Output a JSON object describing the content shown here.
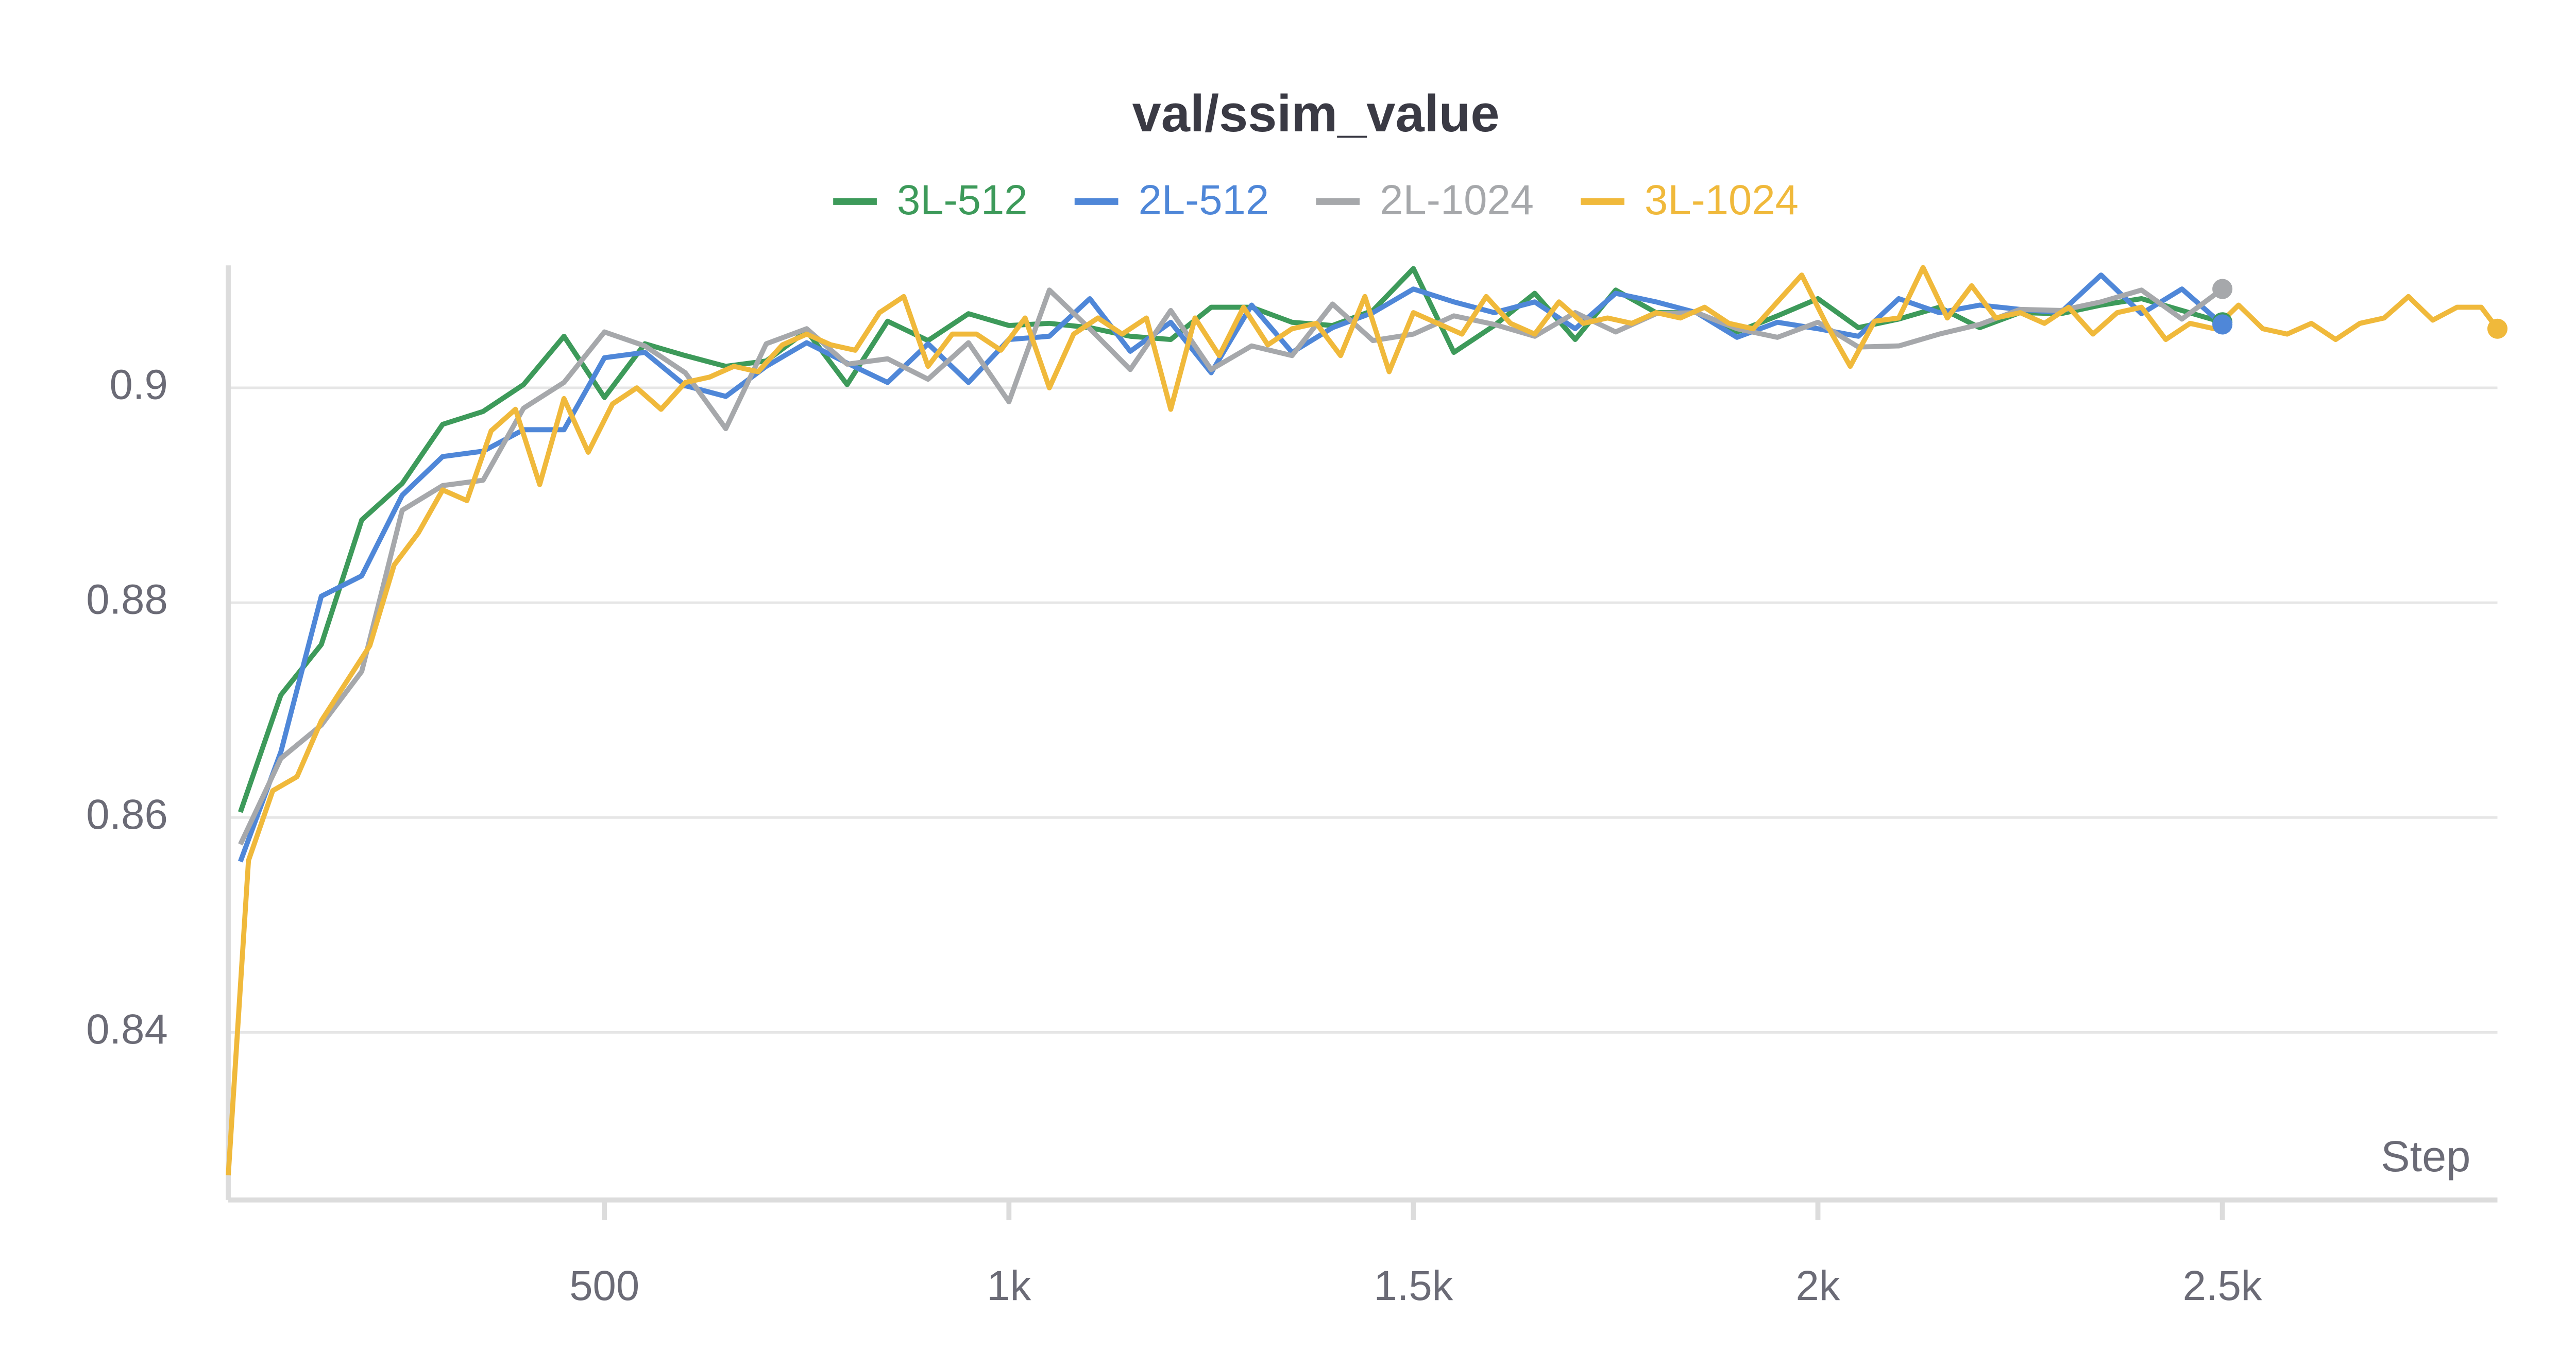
{
  "chart_data": {
    "type": "line",
    "title": "val/ssim_value",
    "x_label": "Step",
    "xlim": [
      35,
      2840
    ],
    "ylim": [
      0.8244,
      0.9114
    ],
    "xticks": [
      500,
      {
        "value": 1000,
        "label": "1k"
      },
      {
        "value": 1500,
        "label": "1.5k"
      },
      {
        "value": 2000,
        "label": "2k"
      },
      {
        "value": 2500,
        "label": "2.5k"
      }
    ],
    "yticks": [
      0.84,
      0.86,
      0.88,
      0.9
    ],
    "grid": true,
    "legend": "top",
    "series": [
      {
        "name": "3L-512",
        "color": "#3d9a5a",
        "x": [
          50,
          100,
          150,
          200,
          250,
          300,
          350,
          400,
          450,
          500,
          550,
          600,
          650,
          700,
          750,
          800,
          850,
          900,
          950,
          1000,
          1050,
          1100,
          1150,
          1200,
          1250,
          1300,
          1350,
          1400,
          1450,
          1500,
          1550,
          1600,
          1650,
          1700,
          1750,
          1800,
          1850,
          1900,
          1950,
          2000,
          2050,
          2100,
          2150,
          2200,
          2250,
          2300,
          2350,
          2400,
          2450,
          2500
        ],
        "values": [
          0.8605,
          0.8714,
          0.8761,
          0.8877,
          0.8911,
          0.8966,
          0.8978,
          0.9003,
          0.9048,
          0.8991,
          0.9041,
          0.903,
          0.902,
          0.9025,
          0.9053,
          0.9003,
          0.9062,
          0.9044,
          0.9069,
          0.9058,
          0.906,
          0.9056,
          0.9048,
          0.9045,
          0.9075,
          0.9075,
          0.9061,
          0.9058,
          0.9072,
          0.9111,
          0.9033,
          0.9058,
          0.9088,
          0.9045,
          0.9091,
          0.907,
          0.907,
          0.9052,
          0.9067,
          0.9083,
          0.9056,
          0.9064,
          0.9075,
          0.9056,
          0.907,
          0.9069,
          0.9077,
          0.9083,
          0.9072,
          0.9061
        ]
      },
      {
        "name": "2L-512",
        "color": "#4f87d8",
        "x": [
          50,
          100,
          150,
          200,
          250,
          300,
          350,
          400,
          450,
          500,
          550,
          600,
          650,
          700,
          750,
          800,
          850,
          900,
          950,
          1000,
          1050,
          1100,
          1150,
          1200,
          1250,
          1300,
          1350,
          1400,
          1450,
          1500,
          1550,
          1600,
          1650,
          1700,
          1750,
          1800,
          1850,
          1900,
          1950,
          2000,
          2050,
          2100,
          2150,
          2200,
          2250,
          2300,
          2350,
          2400,
          2450,
          2500
        ],
        "values": [
          0.8559,
          0.8661,
          0.8806,
          0.8825,
          0.89,
          0.8936,
          0.8941,
          0.8961,
          0.8961,
          0.9028,
          0.9033,
          0.9002,
          0.8992,
          0.902,
          0.9042,
          0.9023,
          0.9005,
          0.9041,
          0.9005,
          0.9045,
          0.9048,
          0.9083,
          0.9034,
          0.9061,
          0.9014,
          0.9077,
          0.9033,
          0.9056,
          0.907,
          0.9092,
          0.908,
          0.907,
          0.908,
          0.9055,
          0.9088,
          0.908,
          0.907,
          0.9047,
          0.9061,
          0.9055,
          0.9048,
          0.9083,
          0.907,
          0.9077,
          0.9073,
          0.907,
          0.9105,
          0.9069,
          0.9092,
          0.9059
        ]
      },
      {
        "name": "2L-1024",
        "color": "#a6a8ab",
        "x": [
          50,
          100,
          150,
          200,
          250,
          300,
          350,
          400,
          450,
          500,
          550,
          600,
          650,
          700,
          750,
          800,
          850,
          900,
          950,
          1000,
          1050,
          1100,
          1150,
          1200,
          1250,
          1300,
          1350,
          1400,
          1450,
          1500,
          1550,
          1600,
          1650,
          1700,
          1750,
          1800,
          1850,
          1900,
          1950,
          2000,
          2050,
          2100,
          2150,
          2200,
          2250,
          2300,
          2350,
          2400,
          2450,
          2500
        ],
        "values": [
          0.8575,
          0.8655,
          0.8686,
          0.8736,
          0.8886,
          0.8909,
          0.8914,
          0.8981,
          0.9005,
          0.9052,
          0.9039,
          0.9014,
          0.8962,
          0.9041,
          0.9055,
          0.9022,
          0.9027,
          0.9008,
          0.9042,
          0.8987,
          0.9091,
          0.9055,
          0.9017,
          0.9072,
          0.9017,
          0.9039,
          0.903,
          0.9078,
          0.9044,
          0.905,
          0.9067,
          0.9059,
          0.9048,
          0.907,
          0.9052,
          0.9069,
          0.907,
          0.9055,
          0.9047,
          0.9061,
          0.9038,
          0.9039,
          0.905,
          0.9059,
          0.9073,
          0.9072,
          0.908,
          0.9091,
          0.9064,
          0.9092
        ]
      },
      {
        "name": "3L-1024",
        "color": "#f0b93b",
        "x": [
          35,
          60,
          90,
          120,
          150,
          180,
          210,
          240,
          270,
          300,
          330,
          360,
          390,
          420,
          450,
          480,
          510,
          540,
          570,
          600,
          630,
          660,
          690,
          720,
          750,
          780,
          810,
          840,
          870,
          900,
          930,
          960,
          990,
          1020,
          1050,
          1080,
          1110,
          1140,
          1170,
          1200,
          1230,
          1260,
          1290,
          1320,
          1350,
          1380,
          1410,
          1440,
          1470,
          1500,
          1530,
          1560,
          1590,
          1620,
          1650,
          1680,
          1710,
          1740,
          1770,
          1800,
          1830,
          1860,
          1890,
          1920,
          1950,
          1980,
          2010,
          2040,
          2070,
          2100,
          2130,
          2160,
          2190,
          2220,
          2250,
          2280,
          2310,
          2340,
          2370,
          2400,
          2430,
          2460,
          2490,
          2520,
          2550,
          2580,
          2610,
          2640,
          2670,
          2700,
          2730,
          2760,
          2790,
          2820,
          2840
        ],
        "values": [
          0.8267,
          0.856,
          0.8625,
          0.8638,
          0.869,
          0.8725,
          0.876,
          0.8835,
          0.8865,
          0.8905,
          0.8895,
          0.896,
          0.898,
          0.891,
          0.899,
          0.894,
          0.8985,
          0.9,
          0.898,
          0.9005,
          0.901,
          0.902,
          0.9015,
          0.904,
          0.905,
          0.904,
          0.9035,
          0.907,
          0.9085,
          0.902,
          0.905,
          0.905,
          0.9035,
          0.9065,
          0.9,
          0.905,
          0.9065,
          0.905,
          0.9065,
          0.898,
          0.9065,
          0.903,
          0.9075,
          0.904,
          0.9055,
          0.906,
          0.903,
          0.9085,
          0.9015,
          0.907,
          0.906,
          0.905,
          0.9085,
          0.906,
          0.905,
          0.908,
          0.906,
          0.9065,
          0.906,
          0.907,
          0.9065,
          0.9075,
          0.906,
          0.9055,
          0.908,
          0.9105,
          0.906,
          0.902,
          0.9062,
          0.9065,
          0.9112,
          0.9065,
          0.9095,
          0.9065,
          0.907,
          0.906,
          0.9075,
          0.905,
          0.907,
          0.9075,
          0.9045,
          0.906,
          0.9055,
          0.9077,
          0.9055,
          0.905,
          0.906,
          0.9045,
          0.906,
          0.9065,
          0.9085,
          0.9063,
          0.9075,
          0.9075,
          0.9055
        ]
      }
    ]
  }
}
